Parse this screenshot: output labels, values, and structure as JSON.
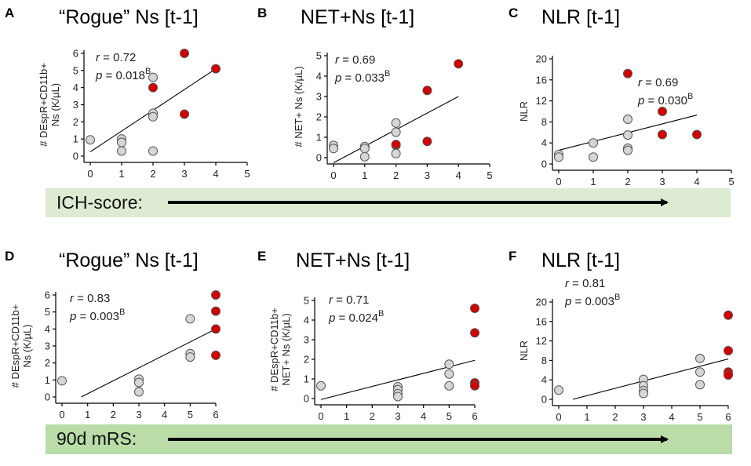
{
  "figure": {
    "banners": [
      {
        "label": "ICH-score:",
        "color": "#dcebd2"
      },
      {
        "label": "90d mRS:",
        "color": "#b9dca8"
      }
    ]
  },
  "colors": {
    "high": "#d40000",
    "low": "#d6d6d6",
    "stroke": "#555555"
  },
  "chart_data": [
    {
      "id": "A",
      "type": "scatter",
      "title": "“Rogue” Ns [t-1]",
      "ylabel": [
        "# DEspR+CD11b+",
        "Ns (K/µL)"
      ],
      "xlabel": "ICH-score",
      "xlim": [
        0,
        5
      ],
      "ylim": [
        0,
        6
      ],
      "xticks": [
        0,
        1,
        2,
        3,
        4,
        5
      ],
      "yticks": [
        0,
        1,
        2,
        3,
        4,
        5,
        6
      ],
      "stats": {
        "r_label": "r",
        "r_value": "= 0.72",
        "p_label": "p",
        "p_value": "= 0.018",
        "p_sup": "B"
      },
      "points": [
        {
          "x": 0,
          "y": 0.95,
          "g": "low"
        },
        {
          "x": 1,
          "y": 1.0,
          "g": "low"
        },
        {
          "x": 1,
          "y": 0.8,
          "g": "low"
        },
        {
          "x": 1,
          "y": 0.3,
          "g": "low"
        },
        {
          "x": 2,
          "y": 4.6,
          "g": "low"
        },
        {
          "x": 2,
          "y": 2.5,
          "g": "low"
        },
        {
          "x": 2,
          "y": 2.3,
          "g": "low"
        },
        {
          "x": 2,
          "y": 0.3,
          "g": "low"
        },
        {
          "x": 2,
          "y": 4.0,
          "g": "high"
        },
        {
          "x": 3,
          "y": 6.0,
          "g": "high"
        },
        {
          "x": 3,
          "y": 2.45,
          "g": "high"
        },
        {
          "x": 4,
          "y": 5.1,
          "g": "high"
        }
      ],
      "fit": [
        [
          0,
          0.25
        ],
        [
          4,
          5.1
        ]
      ]
    },
    {
      "id": "B",
      "type": "scatter",
      "title": "NET+Ns [t-1]",
      "ylabel": [
        "# NET+ Ns (K/µL)"
      ],
      "xlabel": "ICH-score",
      "xlim": [
        0,
        5
      ],
      "ylim": [
        0,
        5
      ],
      "xticks": [
        0,
        1,
        2,
        3,
        4,
        5
      ],
      "yticks": [
        0,
        1,
        2,
        3,
        4,
        5
      ],
      "stats": {
        "r_label": "r",
        "r_value": "= 0.69",
        "p_label": "p",
        "p_value": "= 0.033",
        "p_sup": "B"
      },
      "points": [
        {
          "x": 0,
          "y": 0.6,
          "g": "low"
        },
        {
          "x": 0,
          "y": 0.45,
          "g": "low"
        },
        {
          "x": 1,
          "y": 0.55,
          "g": "low"
        },
        {
          "x": 1,
          "y": 0.45,
          "g": "low"
        },
        {
          "x": 1,
          "y": 0.05,
          "g": "low"
        },
        {
          "x": 2,
          "y": 1.7,
          "g": "low"
        },
        {
          "x": 2,
          "y": 1.25,
          "g": "low"
        },
        {
          "x": 2,
          "y": 0.6,
          "g": "low"
        },
        {
          "x": 2,
          "y": 0.2,
          "g": "low"
        },
        {
          "x": 2,
          "y": 0.65,
          "g": "high"
        },
        {
          "x": 3,
          "y": 3.3,
          "g": "high"
        },
        {
          "x": 3,
          "y": 0.8,
          "g": "high"
        },
        {
          "x": 4,
          "y": 4.6,
          "g": "high"
        }
      ],
      "fit": [
        [
          0,
          -0.25
        ],
        [
          4,
          3.0
        ]
      ]
    },
    {
      "id": "C",
      "type": "scatter",
      "title": "NLR [t-1]",
      "ylabel": [
        "NLR"
      ],
      "xlabel": "ICH-score",
      "xlim": [
        0,
        5
      ],
      "ylim": [
        0,
        20
      ],
      "xticks": [
        0,
        1,
        2,
        3,
        4,
        5
      ],
      "yticks": [
        0,
        4,
        8,
        12,
        16,
        20
      ],
      "stats": {
        "r_label": "r",
        "r_value": "= 0.69",
        "p_label": "p",
        "p_value": "= 0.030",
        "p_sup": "B"
      },
      "points": [
        {
          "x": 0,
          "y": 1.8,
          "g": "low"
        },
        {
          "x": 0,
          "y": 1.3,
          "g": "low"
        },
        {
          "x": 1,
          "y": 4.0,
          "g": "low"
        },
        {
          "x": 1,
          "y": 1.3,
          "g": "low"
        },
        {
          "x": 2,
          "y": 8.5,
          "g": "low"
        },
        {
          "x": 2,
          "y": 5.5,
          "g": "low"
        },
        {
          "x": 2,
          "y": 3.0,
          "g": "low"
        },
        {
          "x": 2,
          "y": 2.6,
          "g": "low"
        },
        {
          "x": 2,
          "y": 17.2,
          "g": "high"
        },
        {
          "x": 3,
          "y": 10.0,
          "g": "high"
        },
        {
          "x": 3,
          "y": 5.6,
          "g": "high"
        },
        {
          "x": 4,
          "y": 5.6,
          "g": "high"
        }
      ],
      "fit": [
        [
          0,
          2.6
        ],
        [
          4,
          9.3
        ]
      ]
    },
    {
      "id": "D",
      "type": "scatter",
      "title": "“Rogue” Ns [t-1]",
      "ylabel": [
        "# DEspR+CD11b+",
        "Ns (K/µL)"
      ],
      "xlabel": "90d mRS",
      "xlim": [
        0,
        6
      ],
      "ylim": [
        0,
        6
      ],
      "xticks": [
        0,
        1,
        2,
        3,
        4,
        5,
        6
      ],
      "yticks": [
        0,
        1,
        2,
        3,
        4,
        5,
        6
      ],
      "stats": {
        "r_label": "r",
        "r_value": "= 0.83",
        "p_label": "p",
        "p_value": "= 0.003",
        "p_sup": "B"
      },
      "points": [
        {
          "x": 0,
          "y": 0.95,
          "g": "low"
        },
        {
          "x": 3,
          "y": 1.05,
          "g": "low"
        },
        {
          "x": 3,
          "y": 0.85,
          "g": "low"
        },
        {
          "x": 3,
          "y": 0.3,
          "g": "low"
        },
        {
          "x": 5,
          "y": 4.6,
          "g": "low"
        },
        {
          "x": 5,
          "y": 2.55,
          "g": "low"
        },
        {
          "x": 5,
          "y": 2.35,
          "g": "low"
        },
        {
          "x": 6,
          "y": 6.0,
          "g": "high"
        },
        {
          "x": 6,
          "y": 5.05,
          "g": "high"
        },
        {
          "x": 6,
          "y": 4.0,
          "g": "high"
        },
        {
          "x": 6,
          "y": 2.45,
          "g": "high"
        }
      ],
      "fit": [
        [
          0.75,
          0
        ],
        [
          6,
          4.0
        ]
      ]
    },
    {
      "id": "E",
      "type": "scatter",
      "title": "NET+Ns [t-1]",
      "ylabel": [
        "# DEspR+CD11b+",
        "NET+ Ns (K/µL)"
      ],
      "xlabel": "90d mRS",
      "xlim": [
        0,
        6
      ],
      "ylim": [
        0,
        5
      ],
      "xticks": [
        0,
        1,
        2,
        3,
        4,
        5,
        6
      ],
      "yticks": [
        0,
        1,
        2,
        3,
        4,
        5
      ],
      "stats": {
        "r_label": "r",
        "r_value": "= 0.71",
        "p_label": "p",
        "p_value": "= 0.024",
        "p_sup": "B"
      },
      "points": [
        {
          "x": 0,
          "y": 0.65,
          "g": "low"
        },
        {
          "x": 3,
          "y": 0.6,
          "g": "low"
        },
        {
          "x": 3,
          "y": 0.45,
          "g": "low"
        },
        {
          "x": 3,
          "y": 0.25,
          "g": "low"
        },
        {
          "x": 3,
          "y": 0.1,
          "g": "low"
        },
        {
          "x": 5,
          "y": 1.75,
          "g": "low"
        },
        {
          "x": 5,
          "y": 1.25,
          "g": "low"
        },
        {
          "x": 5,
          "y": 0.65,
          "g": "low"
        },
        {
          "x": 6,
          "y": 4.6,
          "g": "high"
        },
        {
          "x": 6,
          "y": 3.35,
          "g": "high"
        },
        {
          "x": 6,
          "y": 0.8,
          "g": "high"
        },
        {
          "x": 6,
          "y": 0.65,
          "g": "high"
        }
      ],
      "fit": [
        [
          0,
          -0.05
        ],
        [
          6,
          1.95
        ]
      ]
    },
    {
      "id": "F",
      "type": "scatter",
      "title": "NLR [t-1]",
      "ylabel": [
        "NLR"
      ],
      "xlabel": "90d mRS",
      "xlim": [
        0,
        6
      ],
      "ylim": [
        0,
        20
      ],
      "xticks": [
        0,
        1,
        2,
        3,
        4,
        5,
        6
      ],
      "yticks": [
        0,
        4,
        8,
        12,
        16,
        20
      ],
      "stats": {
        "r_label": "r",
        "r_value": "= 0.81",
        "p_label": "p",
        "p_value": "= 0.003",
        "p_sup": "B"
      },
      "points": [
        {
          "x": 0,
          "y": 1.9,
          "g": "low"
        },
        {
          "x": 3,
          "y": 4.1,
          "g": "low"
        },
        {
          "x": 3,
          "y": 2.8,
          "g": "low"
        },
        {
          "x": 3,
          "y": 1.8,
          "g": "low"
        },
        {
          "x": 3,
          "y": 1.2,
          "g": "low"
        },
        {
          "x": 5,
          "y": 8.4,
          "g": "low"
        },
        {
          "x": 5,
          "y": 5.6,
          "g": "low"
        },
        {
          "x": 5,
          "y": 3.0,
          "g": "low"
        },
        {
          "x": 6,
          "y": 17.3,
          "g": "high"
        },
        {
          "x": 6,
          "y": 10.0,
          "g": "high"
        },
        {
          "x": 6,
          "y": 5.6,
          "g": "high"
        },
        {
          "x": 6,
          "y": 5.0,
          "g": "high"
        }
      ],
      "fit": [
        [
          0.5,
          0
        ],
        [
          6,
          8.3
        ]
      ]
    }
  ]
}
